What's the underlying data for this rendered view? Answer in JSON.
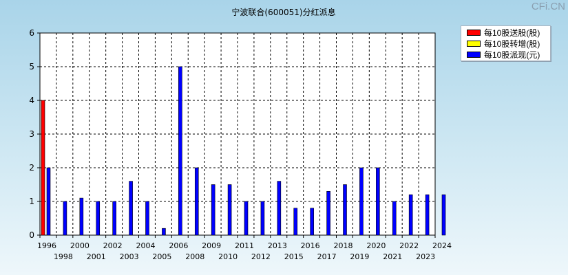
{
  "watermark": "CFi.CN",
  "chart_data": {
    "type": "bar",
    "title": "宁波联合(600051)分红派息",
    "xlabel": "",
    "ylabel": "",
    "ylim": [
      0,
      6
    ],
    "yticks": [
      "0",
      "1",
      "2",
      "3",
      "4",
      "5",
      "6"
    ],
    "grid": true,
    "legend_position": "top-right",
    "categories": [
      "1996",
      "1998",
      "2000",
      "2001",
      "2002",
      "2003",
      "2004",
      "2005",
      "2006",
      "2008",
      "2009",
      "2010",
      "2011",
      "2012",
      "2013",
      "2015",
      "2016",
      "2017",
      "2018",
      "2019",
      "2020",
      "2021",
      "2022",
      "2023",
      "2024"
    ],
    "series": [
      {
        "name": "每10股送股(股)",
        "color": "#ff0000",
        "values": [
          4,
          0,
          0,
          0,
          0,
          0,
          0,
          0,
          0,
          0,
          0,
          0,
          0,
          0,
          0,
          0,
          0,
          0,
          0,
          0,
          0,
          0,
          0,
          0,
          0
        ]
      },
      {
        "name": "每10股转增(股)",
        "color": "#ffff00",
        "values": [
          0,
          0,
          0,
          0,
          0,
          0,
          0,
          0,
          0,
          0,
          0,
          0,
          0,
          0,
          0,
          0,
          0,
          0,
          0,
          0,
          0,
          0,
          0,
          0,
          0
        ]
      },
      {
        "name": "每10股派现(元)",
        "color": "#0000ff",
        "values": [
          2,
          1,
          1.1,
          1,
          1,
          1.6,
          1,
          0.2,
          5,
          2,
          1.5,
          1.5,
          1,
          1,
          1.6,
          0.8,
          0.8,
          1.3,
          1.5,
          2,
          2,
          1,
          1.2,
          1.2,
          1.2
        ]
      }
    ]
  }
}
